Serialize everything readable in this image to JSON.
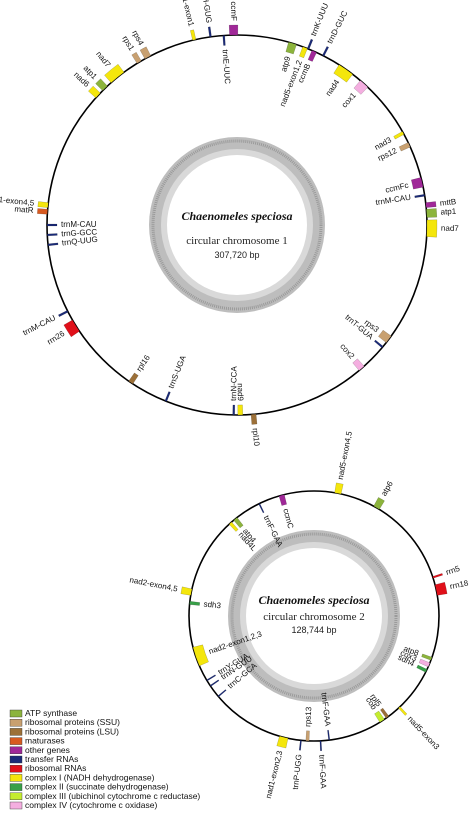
{
  "chromosome1": {
    "title": "Chaenomeles speciosa",
    "subtitle": "circular chromosome 1",
    "size": "307,720 bp",
    "genes": [
      {
        "label": "nad1-exon1",
        "angle": 347,
        "span": 1,
        "cat": "nadh",
        "out": true
      },
      {
        "label": "trnH-GUG",
        "angle": 352,
        "span": 0.6,
        "cat": "trna",
        "out": true
      },
      {
        "label": "ccmF",
        "angle": 359,
        "span": 2.5,
        "cat": "other",
        "out": true
      },
      {
        "label": "trnE-UUC",
        "angle": 356,
        "span": 0.6,
        "cat": "trna",
        "out": false
      },
      {
        "label": "trnK-UUU",
        "angle": 22,
        "span": 0.6,
        "cat": "trna",
        "out": true
      },
      {
        "label": "trnD-GUC",
        "angle": 27,
        "span": 0.6,
        "cat": "trna",
        "out": true
      },
      {
        "label": "atp9",
        "angle": 17,
        "span": 2.5,
        "cat": "atp",
        "out": false
      },
      {
        "label": "nad5-exon1,2",
        "angle": 21,
        "span": 1.5,
        "cat": "nadh",
        "out": false
      },
      {
        "label": "ccmB",
        "angle": 24,
        "span": 1.5,
        "cat": "other",
        "out": false
      },
      {
        "label": "nad4",
        "angle": 35,
        "span": 5,
        "cat": "nadh",
        "out": false
      },
      {
        "label": "cox1",
        "angle": 42,
        "span": 3,
        "cat": "cox",
        "out": false
      },
      {
        "label": "nad3",
        "angle": 61,
        "span": 1,
        "cat": "nadh",
        "out": false
      },
      {
        "label": "rps12",
        "angle": 65,
        "span": 1.5,
        "cat": "ssu",
        "out": false
      },
      {
        "label": "ccmFc",
        "angle": 77,
        "span": 3,
        "cat": "other",
        "out": false
      },
      {
        "label": "trnM-CAU",
        "angle": 81,
        "span": 0.6,
        "cat": "trna",
        "out": false
      },
      {
        "label": "mttB",
        "angle": 84,
        "span": 1.5,
        "cat": "other",
        "out": true
      },
      {
        "label": "atp1",
        "angle": 86.5,
        "span": 2.5,
        "cat": "atp",
        "out": true
      },
      {
        "label": "nad7",
        "angle": 91,
        "span": 5,
        "cat": "nadh",
        "out": true
      },
      {
        "label": "rps3",
        "angle": 127,
        "span": 2.5,
        "cat": "ssu",
        "out": false
      },
      {
        "label": "trnT-GUA",
        "angle": 130,
        "span": 0.6,
        "cat": "trna",
        "out": false
      },
      {
        "label": "cox2",
        "angle": 139,
        "span": 2,
        "cat": "cox",
        "out": false
      },
      {
        "label": "trnN-CCA",
        "angle": 181,
        "span": 0.6,
        "cat": "trna",
        "out": false
      },
      {
        "label": "nad9",
        "angle": 179,
        "span": 1.5,
        "cat": "nadh",
        "out": false
      },
      {
        "label": "rpl10",
        "angle": 175,
        "span": 1.5,
        "cat": "lsu",
        "out": true
      },
      {
        "label": "trnS-UGA",
        "angle": 202,
        "span": 0.6,
        "cat": "trna",
        "out": false
      },
      {
        "label": "rpl16",
        "angle": 214,
        "span": 1.5,
        "cat": "lsu",
        "out": false
      },
      {
        "label": "rrn26",
        "angle": 238,
        "span": 4,
        "cat": "rrna",
        "out": true
      },
      {
        "label": "trnM-CAU",
        "angle": 243,
        "span": 0.6,
        "cat": "trna",
        "out": true
      },
      {
        "label": "trnQ-UUG",
        "angle": 264,
        "span": 0.6,
        "cat": "trna",
        "out": false
      },
      {
        "label": "trnG-GCC",
        "angle": 267,
        "span": 0.6,
        "cat": "trna",
        "out": false
      },
      {
        "label": "trnM-CAU",
        "angle": 270,
        "span": 0.6,
        "cat": "trna",
        "out": false
      },
      {
        "label": "matR",
        "angle": 274,
        "span": 1.5,
        "cat": "maturase",
        "out": true
      },
      {
        "label": "nad1-exon4,5",
        "angle": 276,
        "span": 1.5,
        "cat": "nadh",
        "out": true
      },
      {
        "label": "nad6",
        "angle": 313,
        "span": 2,
        "cat": "nadh",
        "out": true
      },
      {
        "label": "atp1",
        "angle": 316,
        "span": 2,
        "cat": "atp",
        "out": true
      },
      {
        "label": "nad7",
        "angle": 321,
        "span": 5,
        "cat": "nadh",
        "out": true
      },
      {
        "label": "rps1",
        "angle": 329,
        "span": 1.5,
        "cat": "ssu",
        "out": true
      },
      {
        "label": "rps4",
        "angle": 332,
        "span": 2,
        "cat": "ssu",
        "out": true
      }
    ]
  },
  "chromosome2": {
    "title": "Chaenomeles speciosa",
    "subtitle": "circular chromosome 2",
    "size": "128,744 bp",
    "genes": [
      {
        "label": "nad5-exon4,5",
        "angle": 11,
        "span": 3,
        "cat": "nadh",
        "out": true
      },
      {
        "label": "atp6",
        "angle": 30,
        "span": 3,
        "cat": "atp",
        "out": true
      },
      {
        "label": "rrn5",
        "angle": 72,
        "span": 0.8,
        "cat": "rrna",
        "out": true
      },
      {
        "label": "rrn18",
        "angle": 78,
        "span": 5,
        "cat": "rrna",
        "out": true
      },
      {
        "label": "atp8",
        "angle": 110,
        "span": 1.5,
        "cat": "atp",
        "out": false
      },
      {
        "label": "cox3",
        "angle": 113,
        "span": 2,
        "cat": "cox",
        "out": false
      },
      {
        "label": "sdh4",
        "angle": 116,
        "span": 1.5,
        "cat": "sdh",
        "out": false
      },
      {
        "label": "rpl5",
        "angle": 144,
        "span": 1.5,
        "cat": "lsu",
        "out": false
      },
      {
        "label": "cob",
        "angle": 147,
        "span": 2.5,
        "cat": "cob",
        "out": false
      },
      {
        "label": "nad5-exon3",
        "angle": 137,
        "span": 1,
        "cat": "nadh",
        "out": true
      },
      {
        "label": "trnF-GAA",
        "angle": 173,
        "span": 0.6,
        "cat": "trna",
        "out": false
      },
      {
        "label": "trnF-GAA",
        "angle": 177,
        "span": 0.6,
        "cat": "trna",
        "out": true
      },
      {
        "label": "rps13",
        "angle": 183,
        "span": 1.5,
        "cat": "ssu",
        "out": false
      },
      {
        "label": "trnP-UGG",
        "angle": 186,
        "span": 0.6,
        "cat": "trna",
        "out": true
      },
      {
        "label": "nad1-exon2,3",
        "angle": 194,
        "span": 4,
        "cat": "nadh",
        "out": true
      },
      {
        "label": "trnC-GCA",
        "angle": 230,
        "span": 0.6,
        "cat": "trna",
        "out": false
      },
      {
        "label": "trnN-GUU",
        "angle": 236,
        "span": 0.6,
        "cat": "trna",
        "out": false
      },
      {
        "label": "trnY-GUA",
        "angle": 239,
        "span": 0.6,
        "cat": "trna",
        "out": false
      },
      {
        "label": "nad2-exon1,2,3",
        "angle": 251,
        "span": 9,
        "cat": "nadh",
        "out": false
      },
      {
        "label": "sdh3",
        "angle": 276,
        "span": 1.5,
        "cat": "sdh",
        "out": false
      },
      {
        "label": "nad2-exon4,5",
        "angle": 281,
        "span": 3,
        "cat": "nadh",
        "out": true
      },
      {
        "label": "nad4L",
        "angle": 318,
        "span": 1.5,
        "cat": "nadh",
        "out": false
      },
      {
        "label": "atp4",
        "angle": 321,
        "span": 2,
        "cat": "atp",
        "out": false
      },
      {
        "label": "trnF-GAA",
        "angle": 334,
        "span": 0.6,
        "cat": "trna",
        "out": false
      },
      {
        "label": "ccmC",
        "angle": 345,
        "span": 2.5,
        "cat": "other",
        "out": false
      }
    ]
  },
  "legend": [
    {
      "key": "atp",
      "label": "ATP synthase",
      "color": "#8cb43c"
    },
    {
      "key": "ssu",
      "label": "ribosomal proteins (SSU)",
      "color": "#c8a070"
    },
    {
      "key": "lsu",
      "label": "ribosomal proteins (LSU)",
      "color": "#9c7038"
    },
    {
      "key": "maturase",
      "label": "maturases",
      "color": "#d85a20"
    },
    {
      "key": "other",
      "label": "other genes",
      "color": "#a02898"
    },
    {
      "key": "trna",
      "label": "transfer RNAs",
      "color": "#1a2a78"
    },
    {
      "key": "rrna",
      "label": "ribosomal RNAs",
      "color": "#e0101a"
    },
    {
      "key": "nadh",
      "label": "complex I (NADH dehydrogenase)",
      "color": "#f4e60c"
    },
    {
      "key": "sdh",
      "label": "complex II (succinate dehydrogenase)",
      "color": "#38a048"
    },
    {
      "key": "cob",
      "label": "complex III (ubichinol cytochrome c reductase)",
      "color": "#c4ec30"
    },
    {
      "key": "cox",
      "label": "complex IV (cytochrome c oxidase)",
      "color": "#f4aee0"
    }
  ]
}
